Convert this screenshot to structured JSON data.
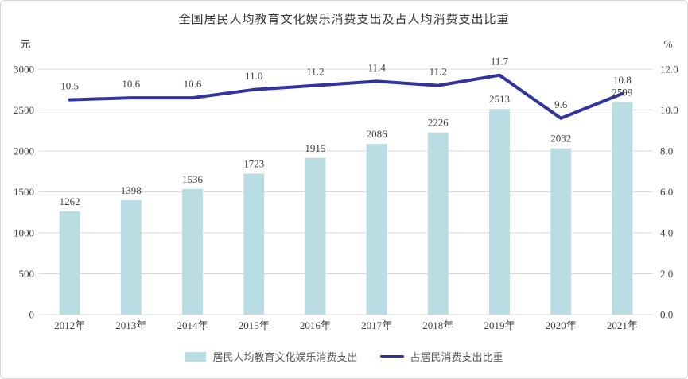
{
  "title": "全国居民人均教育文化娱乐消费支出及占人均消费支出比重",
  "chart_data": {
    "type": "bar+line",
    "categories": [
      "2012年",
      "2013年",
      "2014年",
      "2015年",
      "2016年",
      "2017年",
      "2018年",
      "2019年",
      "2020年",
      "2021年"
    ],
    "series": [
      {
        "name": "居民人均教育文化娱乐消费支出",
        "type": "bar",
        "axis": "left",
        "values": [
          1262,
          1398,
          1536,
          1723,
          1915,
          2086,
          2226,
          2513,
          2032,
          2599
        ],
        "labels": [
          "1262",
          "1398",
          "1536",
          "1723",
          "1915",
          "2086",
          "2226",
          "2513",
          "2032",
          "2599"
        ],
        "color": "#b9dde2"
      },
      {
        "name": "占居民消费支出比重",
        "type": "line",
        "axis": "right",
        "values": [
          10.5,
          10.6,
          10.6,
          11.0,
          11.2,
          11.4,
          11.2,
          11.7,
          9.6,
          10.8
        ],
        "labels": [
          "10.5",
          "10.6",
          "10.6",
          "11.0",
          "11.2",
          "11.4",
          "11.2",
          "11.7",
          "9.6",
          "10.8"
        ],
        "color": "#31339f"
      }
    ],
    "left_axis": {
      "unit": "元",
      "ticks": [
        "0",
        "500",
        "1000",
        "1500",
        "2000",
        "2500",
        "3000"
      ],
      "min": 0,
      "max": 3000
    },
    "right_axis": {
      "unit": "%",
      "ticks": [
        "0.0",
        "2.0",
        "4.0",
        "6.0",
        "8.0",
        "10.0",
        "12.0"
      ],
      "min": 0,
      "max": 12
    },
    "grid": true,
    "legend_position": "bottom",
    "colors": {
      "grid": "#d9d9d9",
      "bar_label": "#3f3f3f",
      "line_label": "#3f3f3f",
      "tick_text": "#404040",
      "title_text": "#333333",
      "legend_text": "#595959"
    }
  }
}
